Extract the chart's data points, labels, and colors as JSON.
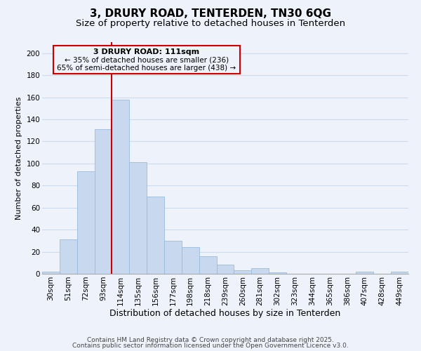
{
  "title": "3, DRURY ROAD, TENTERDEN, TN30 6QG",
  "subtitle": "Size of property relative to detached houses in Tenterden",
  "xlabel": "Distribution of detached houses by size in Tenterden",
  "ylabel": "Number of detached properties",
  "bar_labels": [
    "30sqm",
    "51sqm",
    "72sqm",
    "93sqm",
    "114sqm",
    "135sqm",
    "156sqm",
    "177sqm",
    "198sqm",
    "218sqm",
    "239sqm",
    "260sqm",
    "281sqm",
    "302sqm",
    "323sqm",
    "344sqm",
    "365sqm",
    "386sqm",
    "407sqm",
    "428sqm",
    "449sqm"
  ],
  "bar_values": [
    2,
    31,
    93,
    131,
    158,
    101,
    70,
    30,
    24,
    16,
    8,
    3,
    5,
    1,
    0,
    0,
    0,
    0,
    2,
    0,
    2
  ],
  "bar_color": "#c8d8ee",
  "bar_edge_color": "#99bbdd",
  "vline_color": "#cc0000",
  "annotation_line1": "3 DRURY ROAD: 111sqm",
  "annotation_line2": "← 35% of detached houses are smaller (236)",
  "annotation_line3": "65% of semi-detached houses are larger (438) →",
  "ylim": [
    0,
    210
  ],
  "yticks": [
    0,
    20,
    40,
    60,
    80,
    100,
    120,
    140,
    160,
    180,
    200
  ],
  "grid_color": "#ccdcee",
  "background_color": "#eef2fa",
  "footer_line1": "Contains HM Land Registry data © Crown copyright and database right 2025.",
  "footer_line2": "Contains public sector information licensed under the Open Government Licence v3.0.",
  "title_fontsize": 11,
  "subtitle_fontsize": 9.5,
  "xlabel_fontsize": 9,
  "ylabel_fontsize": 8,
  "tick_fontsize": 7.5,
  "annotation_fontsize": 8,
  "footer_fontsize": 6.5
}
